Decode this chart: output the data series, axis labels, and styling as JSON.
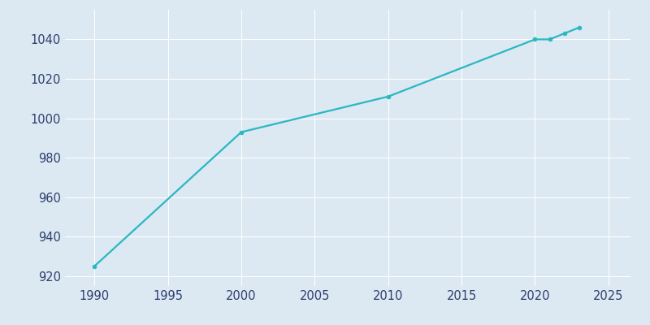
{
  "years": [
    1990,
    2000,
    2010,
    2020,
    2021,
    2022,
    2023
  ],
  "population": [
    925,
    993,
    1011,
    1040,
    1040,
    1043,
    1046
  ],
  "line_color": "#29b8c2",
  "marker_color": "#29b8c2",
  "fig_bg_color": "#dce8f2",
  "plot_bg_color": "#dce8f2",
  "grid_color": "#ffffff",
  "tick_color": "#2e3f6e",
  "xlim": [
    1988,
    2026.5
  ],
  "ylim": [
    915,
    1055
  ],
  "xticks": [
    1990,
    1995,
    2000,
    2005,
    2010,
    2015,
    2020,
    2025
  ],
  "yticks": [
    920,
    940,
    960,
    980,
    1000,
    1020,
    1040
  ]
}
